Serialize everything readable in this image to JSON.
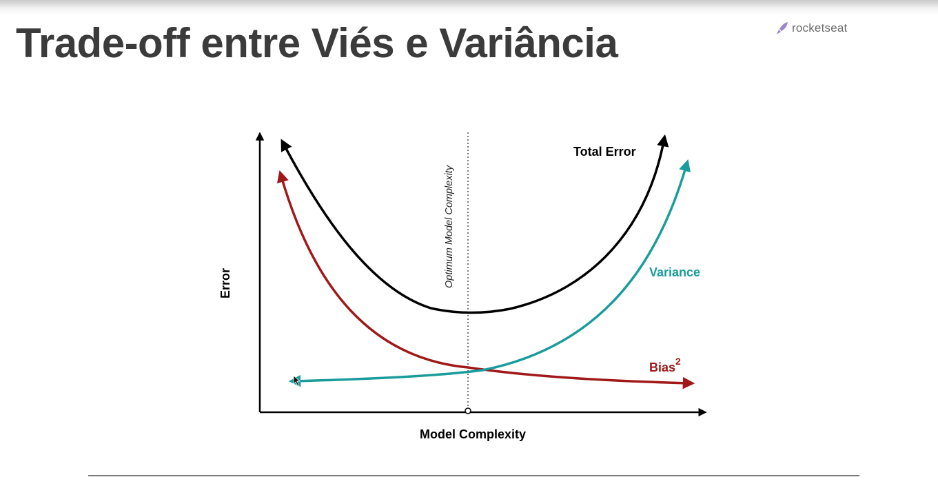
{
  "slide": {
    "title": "Trade-off entre Viés e Variância",
    "brand": {
      "name": "rocketseat",
      "icon": "rocket-icon",
      "color": "#8257e5"
    }
  },
  "diagram": {
    "y_axis_label": "Error",
    "x_axis_label": "Model Complexity",
    "optimum_label": "Optimum Model Complexity",
    "curves": {
      "total_error": {
        "label": "Total Error",
        "color": "#000000"
      },
      "variance": {
        "label": "Variance",
        "color": "#1a9c9c"
      },
      "bias": {
        "label": "Bias",
        "superscript": "2",
        "color": "#a01818"
      }
    }
  }
}
